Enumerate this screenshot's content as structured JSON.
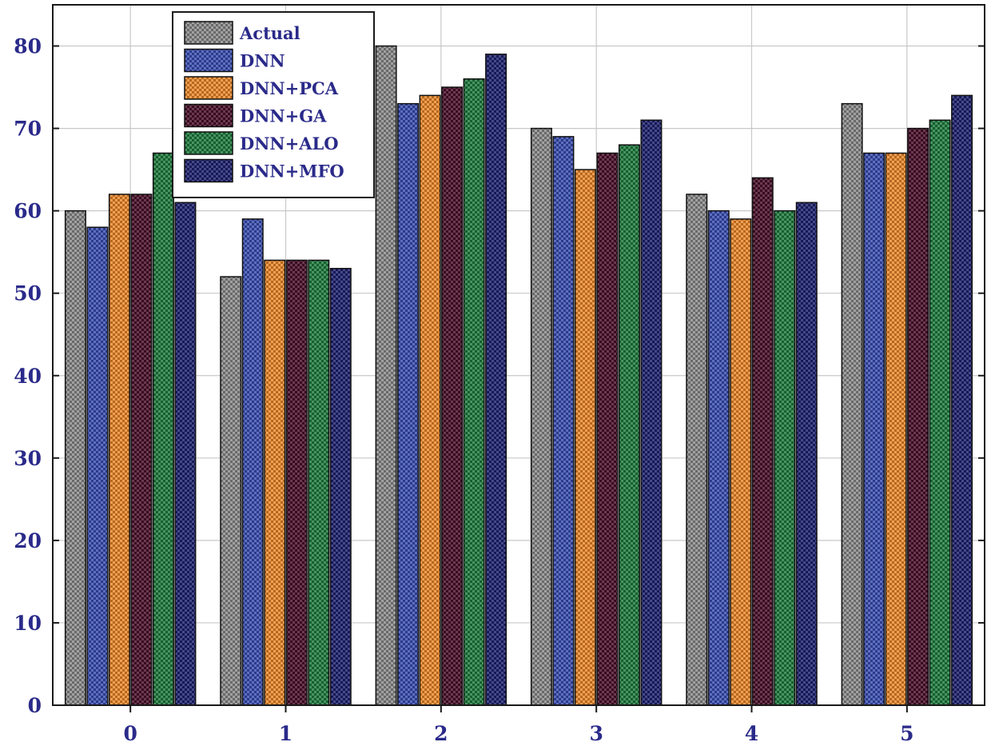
{
  "chart_data": {
    "type": "bar",
    "title": "",
    "xlabel": "",
    "ylabel": "",
    "categories": [
      "0",
      "1",
      "2",
      "3",
      "4",
      "5"
    ],
    "ylim": [
      0,
      85
    ],
    "yticks": [
      0,
      10,
      20,
      30,
      40,
      50,
      60,
      70,
      80
    ],
    "grid": true,
    "legend_position": "top-left",
    "series": [
      {
        "name": "Actual",
        "color": "#8c8c8c",
        "values": [
          60,
          52,
          80,
          70,
          62,
          73
        ]
      },
      {
        "name": "DNN",
        "color": "#3b4fb5",
        "values": [
          58,
          59,
          73,
          69,
          60,
          67
        ]
      },
      {
        "name": "DNN+PCA",
        "color": "#f08a2a",
        "values": [
          62,
          54,
          74,
          65,
          59,
          67
        ]
      },
      {
        "name": "DNN+GA",
        "color": "#4a0f2a",
        "values": [
          62,
          54,
          75,
          67,
          64,
          70
        ]
      },
      {
        "name": "DNN+ALO",
        "color": "#1e7d3e",
        "values": [
          67,
          54,
          76,
          68,
          60,
          71
        ]
      },
      {
        "name": "DNN+MFO",
        "color": "#1d2170",
        "values": [
          61,
          53,
          79,
          71,
          61,
          74
        ]
      }
    ],
    "tick_label_color": "#2a2a8a"
  }
}
